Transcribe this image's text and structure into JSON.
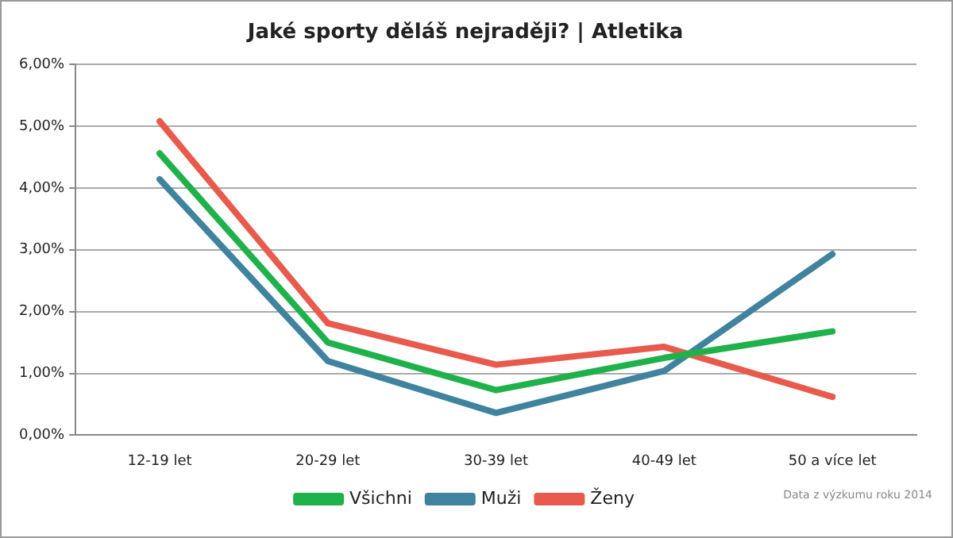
{
  "chart_data": {
    "type": "line",
    "title": "Jaké sporty děláš nejraději? | Atletika",
    "categories": [
      "12-19 let",
      "20-29 let",
      "30-39 let",
      "40-49 let",
      "50 a více let"
    ],
    "series": [
      {
        "name": "Všichni",
        "color": "#1fb14a",
        "values": [
          4.56,
          1.5,
          0.73,
          1.25,
          1.68
        ]
      },
      {
        "name": "Muži",
        "color": "#3f839e",
        "values": [
          4.14,
          1.2,
          0.36,
          1.04,
          2.93
        ]
      },
      {
        "name": "Ženy",
        "color": "#e85a4c",
        "values": [
          5.08,
          1.81,
          1.14,
          1.43,
          0.62
        ]
      }
    ],
    "ylim": [
      0,
      6
    ],
    "yticks": [
      {
        "value": 0,
        "label": "0,00%"
      },
      {
        "value": 1,
        "label": "1,00%"
      },
      {
        "value": 2,
        "label": "2,00%"
      },
      {
        "value": 3,
        "label": "3,00%"
      },
      {
        "value": 4,
        "label": "4,00%"
      },
      {
        "value": 5,
        "label": "5,00%"
      },
      {
        "value": 6,
        "label": "6,00%"
      }
    ],
    "grid": "y",
    "legend": "bottom",
    "marker": "none",
    "line_style": "solid",
    "annotations": [
      "Data z výzkumu roku 2014"
    ]
  }
}
